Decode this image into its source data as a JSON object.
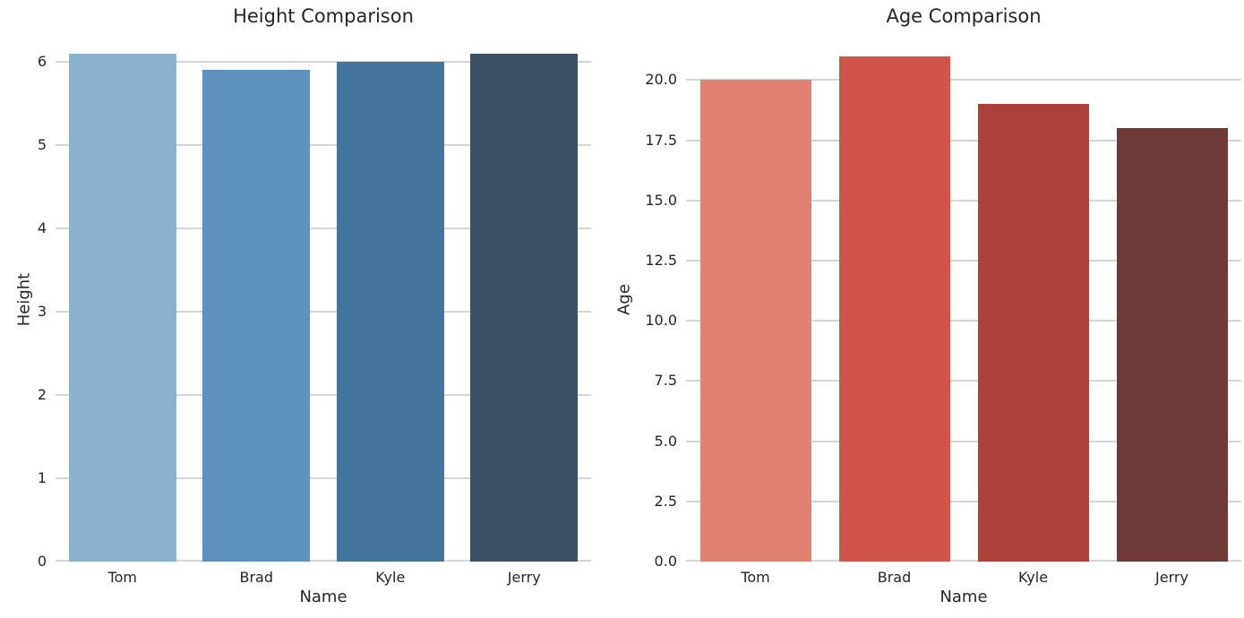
{
  "figure": {
    "background_color": "#ffffff",
    "text_color": "#262626",
    "grid_color": "#d5d5d5"
  },
  "chart_data": [
    {
      "type": "bar",
      "title": "Height Comparison",
      "xlabel": "Name",
      "ylabel": "Height",
      "categories": [
        "Tom",
        "Brad",
        "Kyle",
        "Jerry"
      ],
      "values": [
        6.1,
        5.9,
        6.0,
        6.1
      ],
      "bar_colors": [
        "#8ab1cd",
        "#5c92bb",
        "#44739b",
        "#3b5064"
      ],
      "ylim": [
        0,
        6.3
      ],
      "yticks": [
        0,
        1,
        2,
        3,
        4,
        5,
        6
      ],
      "ytick_labels": [
        "0",
        "1",
        "2",
        "3",
        "4",
        "5",
        "6"
      ],
      "grid": "horizontal",
      "legend": "none"
    },
    {
      "type": "bar",
      "title": "Age Comparison",
      "xlabel": "Name",
      "ylabel": "Age",
      "categories": [
        "Tom",
        "Brad",
        "Kyle",
        "Jerry"
      ],
      "values": [
        20,
        21,
        19,
        18
      ],
      "bar_colors": [
        "#e08172",
        "#d0544a",
        "#ac413b",
        "#6f3937"
      ],
      "ylim": [
        0,
        21.8
      ],
      "yticks": [
        0,
        2.5,
        5,
        7.5,
        10,
        12.5,
        15,
        17.5,
        20
      ],
      "ytick_labels": [
        "0.0",
        "2.5",
        "5.0",
        "7.5",
        "10.0",
        "12.5",
        "15.0",
        "17.5",
        "20.0"
      ],
      "grid": "horizontal",
      "legend": "none"
    }
  ]
}
